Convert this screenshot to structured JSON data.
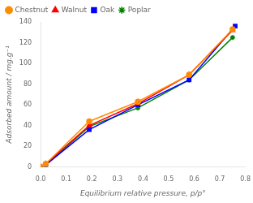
{
  "chart_data": {
    "type": "line",
    "xlabel": "Equilibrium relative pressure, p/p°",
    "ylabel": "Adsorbed amount / mg.g⁻¹",
    "xlim": [
      0.0,
      0.8
    ],
    "ylim": [
      0,
      140
    ],
    "xticks": [
      {
        "value": 0,
        "label": "0.0"
      },
      0.1,
      0.2,
      0.3,
      0.4,
      0.5,
      0.6,
      0.7,
      0.8
    ],
    "yticks": [
      0,
      20,
      40,
      60,
      80,
      100,
      120,
      140
    ],
    "grid": false,
    "legend": "upper left",
    "series": [
      {
        "name": "Chestnut",
        "color": "#FF8C00",
        "marker": "circle",
        "x": [
          0.0,
          0.02,
          0.19,
          0.38,
          0.58,
          0.75
        ],
        "values": [
          0,
          3,
          44,
          63,
          89,
          133
        ]
      },
      {
        "name": "Walnut",
        "color": "#FF0000",
        "marker": "triangle",
        "x": [
          0.0,
          0.02,
          0.19,
          0.38,
          0.58,
          0.75
        ],
        "values": [
          0,
          3,
          40,
          61,
          89,
          132
        ]
      },
      {
        "name": "Oak",
        "color": "#0000FF",
        "marker": "square",
        "x": [
          0.0,
          0.02,
          0.19,
          0.38,
          0.58,
          0.76
        ],
        "values": [
          0,
          2,
          36,
          60,
          84,
          136
        ]
      },
      {
        "name": "Poplar",
        "color": "#008000",
        "marker": "star",
        "x": [
          0.0,
          0.02,
          0.19,
          0.38,
          0.58,
          0.75
        ],
        "values": [
          0,
          2,
          39,
          57,
          84,
          125
        ]
      }
    ]
  }
}
